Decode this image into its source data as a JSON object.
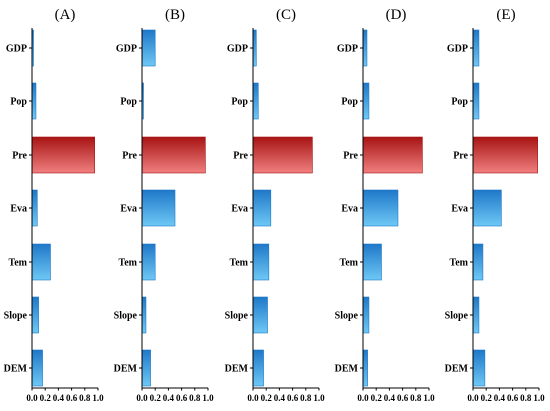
{
  "colors": {
    "blue_dark": "#1f78c8",
    "blue_light": "#6ec8f5",
    "red_dark": "#a81414",
    "red_light": "#f07f7f",
    "axis": "#000000"
  },
  "chart_data": [
    {
      "type": "bar",
      "orientation": "horizontal",
      "title": "(A)",
      "categories": [
        "GDP",
        "Pop",
        "Pre",
        "Eva",
        "Tem",
        "Slope",
        "DEM"
      ],
      "values": [
        0.02,
        0.06,
        0.95,
        0.08,
        0.28,
        0.1,
        0.16
      ],
      "highlight": "Pre",
      "xlim": [
        0,
        1.0
      ],
      "xticks": [
        "0.0",
        "0.2",
        "0.4",
        "0.6",
        "0.8",
        "1.0"
      ]
    },
    {
      "type": "bar",
      "orientation": "horizontal",
      "title": "(B)",
      "categories": [
        "GDP",
        "Pop",
        "Pre",
        "Eva",
        "Tem",
        "Slope",
        "DEM"
      ],
      "values": [
        0.2,
        0.02,
        0.96,
        0.5,
        0.2,
        0.06,
        0.13
      ],
      "highlight": "Pre",
      "xlim": [
        0,
        1.0
      ],
      "xticks": [
        "0.0",
        "0.2",
        "0.4",
        "0.6",
        "0.8",
        "1.0"
      ]
    },
    {
      "type": "bar",
      "orientation": "horizontal",
      "title": "(C)",
      "categories": [
        "GDP",
        "Pop",
        "Pre",
        "Eva",
        "Tem",
        "Slope",
        "DEM"
      ],
      "values": [
        0.05,
        0.08,
        0.9,
        0.27,
        0.24,
        0.22,
        0.16
      ],
      "highlight": "Pre",
      "xlim": [
        0,
        1.0
      ],
      "xticks": [
        "0.0",
        "0.2",
        "0.4",
        "0.6",
        "0.8",
        "1.0"
      ]
    },
    {
      "type": "bar",
      "orientation": "horizontal",
      "title": "(D)",
      "categories": [
        "GDP",
        "Pop",
        "Pre",
        "Eva",
        "Tem",
        "Slope",
        "DEM"
      ],
      "values": [
        0.06,
        0.09,
        0.9,
        0.53,
        0.28,
        0.09,
        0.07
      ],
      "highlight": "Pre",
      "xlim": [
        0,
        1.0
      ],
      "xticks": [
        "0.0",
        "0.2",
        "0.4",
        "0.6",
        "0.8",
        "1.0"
      ]
    },
    {
      "type": "bar",
      "orientation": "horizontal",
      "title": "(E)",
      "categories": [
        "GDP",
        "Pop",
        "Pre",
        "Eva",
        "Tem",
        "Slope",
        "DEM"
      ],
      "values": [
        0.09,
        0.09,
        0.98,
        0.43,
        0.15,
        0.09,
        0.18
      ],
      "highlight": "Pre",
      "xlim": [
        0,
        1.0
      ],
      "xticks": [
        "0.0",
        "0.2",
        "0.4",
        "0.6",
        "0.8",
        "1.0"
      ]
    }
  ]
}
